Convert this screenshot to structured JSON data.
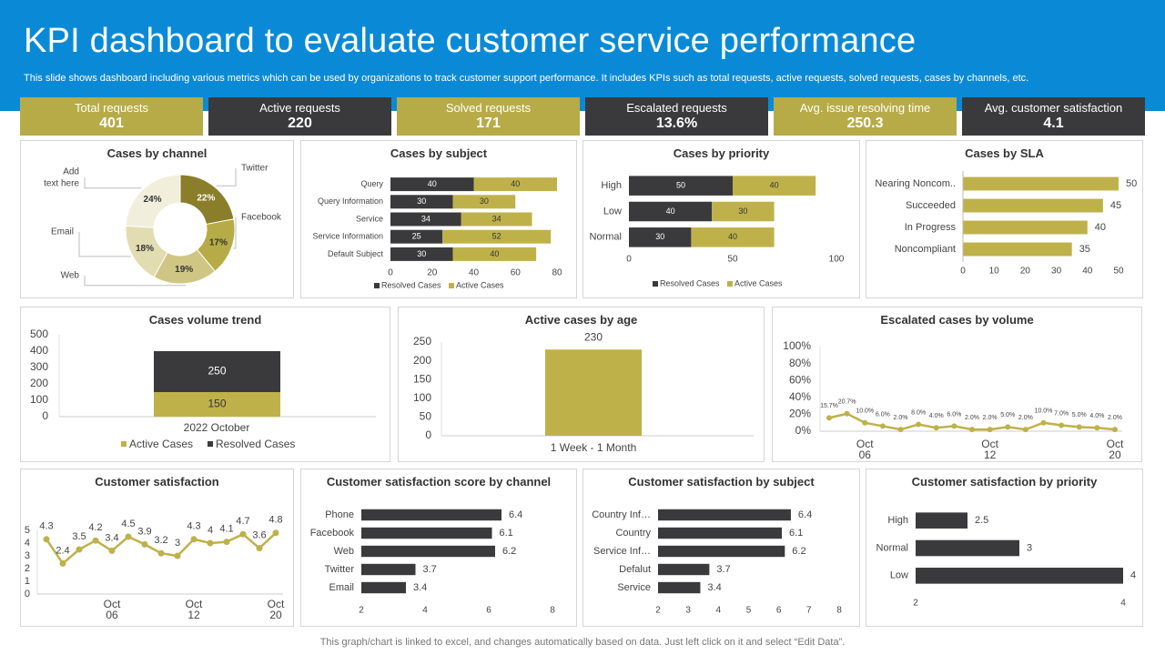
{
  "header": {
    "title": "KPI dashboard to evaluate customer service performance",
    "subtitle": "This slide shows dashboard including various metrics which can be used by organizations to track customer support performance. It includes KPIs such as total requests, active requests, solved requests, cases by channels, etc."
  },
  "kpis": [
    {
      "label": "Total requests",
      "value": "401"
    },
    {
      "label": "Active requests",
      "value": "220"
    },
    {
      "label": "Solved requests",
      "value": "171"
    },
    {
      "label": "Escalated requests",
      "value": "13.6%"
    },
    {
      "label": "Avg. issue resolving time",
      "value": "250.3"
    },
    {
      "label": "Avg. customer satisfaction",
      "value": "4.1"
    }
  ],
  "colors": {
    "olive": "#bfb14a",
    "dark": "#3a3a3c",
    "header": "#0a8ad6",
    "kpi_olive": "#b7ab47",
    "kpi_dark": "#3a3a3c"
  },
  "footer": "This graph/chart is linked to excel, and changes automatically based on data. Just left click on it and select “Edit Data”.",
  "chart_data": [
    {
      "id": "channel",
      "type": "pie",
      "title": "Cases by channel",
      "categories": [
        "Twitter",
        "Facebook",
        "Web",
        "Email",
        "Add text here"
      ],
      "values": [
        22,
        17,
        19,
        18,
        24
      ],
      "labels": [
        "22%",
        "17%",
        "19%",
        "18%",
        "24%"
      ],
      "colors": [
        "#8a7e2a",
        "#b7ab47",
        "#cfc684",
        "#e2dcb2",
        "#f1eedb"
      ]
    },
    {
      "id": "subject",
      "type": "bar",
      "orientation": "horizontal",
      "stacked": true,
      "title": "Cases by subject",
      "categories": [
        "Query",
        "Query Information",
        "Service",
        "Service Information",
        "Default Subject"
      ],
      "series": [
        {
          "name": "Resolved Cases",
          "values": [
            40,
            30,
            34,
            25,
            30
          ]
        },
        {
          "name": "Active Cases",
          "values": [
            40,
            30,
            34,
            52,
            40
          ]
        }
      ],
      "xlim": [
        0,
        80
      ],
      "ticks": [
        0,
        20,
        40,
        60,
        80
      ]
    },
    {
      "id": "priority",
      "type": "bar",
      "orientation": "horizontal",
      "stacked": true,
      "title": "Cases by priority",
      "categories": [
        "High",
        "Low",
        "Normal"
      ],
      "series": [
        {
          "name": "Resolved Cases",
          "values": [
            50,
            40,
            30
          ]
        },
        {
          "name": "Active Cases",
          "values": [
            40,
            30,
            40
          ]
        }
      ],
      "xlim": [
        0,
        100
      ],
      "ticks": [
        0,
        50,
        100
      ]
    },
    {
      "id": "sla",
      "type": "bar",
      "orientation": "horizontal",
      "title": "Cases by SLA",
      "categories": [
        "Nearing Noncom..",
        "Succeeded",
        "In Progress",
        "Noncompliant"
      ],
      "values": [
        50,
        45,
        40,
        35
      ],
      "xlim": [
        0,
        50
      ],
      "ticks": [
        0,
        10,
        20,
        30,
        40,
        50
      ]
    },
    {
      "id": "volume",
      "type": "bar",
      "stacked": true,
      "title": "Cases volume trend",
      "categories": [
        "2022 October"
      ],
      "series": [
        {
          "name": "Active Cases",
          "values": [
            150
          ]
        },
        {
          "name": "Resolved Cases",
          "values": [
            250
          ]
        }
      ],
      "ylim": [
        0,
        500
      ],
      "ticks": [
        0,
        100,
        200,
        300,
        400,
        500
      ]
    },
    {
      "id": "age",
      "type": "bar",
      "title": "Active cases by age",
      "categories": [
        "1 Week - 1 Month"
      ],
      "values": [
        230
      ],
      "value_labels": [
        "230"
      ],
      "ylim": [
        0,
        250
      ],
      "ticks": [
        0,
        50,
        100,
        150,
        200,
        250
      ]
    },
    {
      "id": "escalated",
      "type": "line",
      "title": "Escalated cases by volume",
      "values": [
        15.7,
        20.7,
        10.0,
        6.0,
        2.0,
        8.0,
        4.0,
        6.0,
        2.0,
        2.0,
        5.0,
        2.0,
        10.0,
        7.0,
        5.0,
        4.0,
        2.0
      ],
      "value_labels": [
        "15.7%",
        "20.7%",
        "10.0%",
        "6.0%",
        "2.0%",
        "8.0%",
        "4.0%",
        "6.0%",
        "2.0%",
        "2.0%",
        "5.0%",
        "2.0%",
        "10.0%",
        "7.0%",
        "5.0%",
        "4.0%",
        "2.0%"
      ],
      "x_ticks": [
        {
          "index": 2,
          "line1": "Oct",
          "line2": "06"
        },
        {
          "index": 9,
          "line1": "Oct",
          "line2": "12"
        },
        {
          "index": 16,
          "line1": "Oct",
          "line2": "20"
        }
      ],
      "ylim": [
        0,
        100
      ],
      "ticks": [
        "0%",
        "20%",
        "40%",
        "60%",
        "80%",
        "100%"
      ]
    },
    {
      "id": "satisfaction",
      "type": "line",
      "title": "Customer satisfaction",
      "values": [
        4.3,
        2.4,
        3.5,
        4.2,
        3.4,
        4.5,
        3.9,
        3.2,
        3.0,
        4.3,
        4.0,
        4.1,
        4.7,
        3.6,
        4.8
      ],
      "value_labels": [
        "4.3",
        "2.4",
        "3.5",
        "4.2",
        "3.4",
        "4.5",
        "3.9",
        "3.2",
        "3",
        "4.3",
        "4",
        "4.1",
        "4.7",
        "3.6",
        "4.8"
      ],
      "x_ticks": [
        {
          "index": 4,
          "line1": "Oct",
          "line2": "06"
        },
        {
          "index": 9,
          "line1": "Oct",
          "line2": "12"
        },
        {
          "index": 14,
          "line1": "Oct",
          "line2": "20"
        }
      ],
      "ylim": [
        0,
        5
      ],
      "ticks": [
        0,
        1,
        2,
        3,
        4,
        5
      ]
    },
    {
      "id": "score_channel",
      "type": "bar",
      "orientation": "horizontal",
      "title": "Customer satisfaction score by channel",
      "categories": [
        "Phone",
        "Facebook",
        "Web",
        "Twitter",
        "Email"
      ],
      "values": [
        6.4,
        6.1,
        6.2,
        3.7,
        3.4
      ],
      "value_labels": [
        "6.4",
        "6.1",
        "6.2",
        "3.7",
        "3.4"
      ],
      "xlim": [
        2,
        8
      ],
      "ticks": [
        2,
        4,
        6,
        8
      ]
    },
    {
      "id": "score_subject",
      "type": "bar",
      "orientation": "horizontal",
      "title": "Customer satisfaction by subject",
      "categories": [
        "Country Inf…",
        "Country",
        "Service Inf…",
        "Defalut",
        "Service"
      ],
      "values": [
        6.4,
        6.1,
        6.2,
        3.7,
        3.4
      ],
      "value_labels": [
        "6.4",
        "6.1",
        "6.2",
        "3.7",
        "3.4"
      ],
      "xlim": [
        2,
        8
      ],
      "ticks": [
        2,
        3,
        4,
        5,
        6,
        7,
        8
      ]
    },
    {
      "id": "score_priority",
      "type": "bar",
      "orientation": "horizontal",
      "title": "Customer satisfaction by priority",
      "categories": [
        "High",
        "Normal",
        "Low"
      ],
      "values": [
        2.5,
        3,
        4
      ],
      "value_labels": [
        "2.5",
        "3",
        "4"
      ],
      "xlim": [
        2,
        4
      ],
      "ticks": [
        2,
        4
      ]
    }
  ]
}
